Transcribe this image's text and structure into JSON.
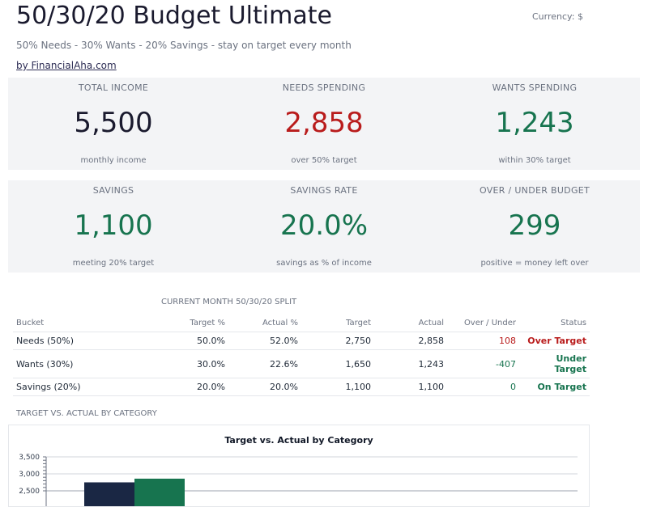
{
  "header": {
    "title": "50/30/20 Budget Ultimate",
    "currency": "Currency: $",
    "subtitle": "50% Needs - 30% Wants - 20% Savings - stay on target every month",
    "byline": "by FinancialAha.com"
  },
  "colors": {
    "dark": "#1a1a2e",
    "red": "#b91c1c",
    "green": "#17744f",
    "muted": "#6b7280",
    "card_bg": "#f3f4f6"
  },
  "kpis_row1": [
    {
      "label": "TOTAL INCOME",
      "value": "5,500",
      "note": "monthly income",
      "color": "#1a1a2e"
    },
    {
      "label": "NEEDS SPENDING",
      "value": "2,858",
      "note": "over 50% target",
      "color": "#b91c1c"
    },
    {
      "label": "WANTS SPENDING",
      "value": "1,243",
      "note": "within 30% target",
      "color": "#17744f"
    }
  ],
  "kpis_row2": [
    {
      "label": "SAVINGS",
      "value": "1,100",
      "note": "meeting 20% target",
      "color": "#17744f"
    },
    {
      "label": "SAVINGS RATE",
      "value": "20.0%",
      "note": "savings as % of income",
      "color": "#17744f"
    },
    {
      "label": "OVER / UNDER BUDGET",
      "value": "299",
      "note": "positive = money left over",
      "color": "#17744f"
    }
  ],
  "split": {
    "caption": "CURRENT MONTH 50/30/20 SPLIT",
    "headers": [
      "Bucket",
      "Target %",
      "Actual %",
      "Target",
      "Actual",
      "Over / Under",
      "Status"
    ],
    "rows": [
      {
        "bucket": "Needs (50%)",
        "target_pct": "50.0%",
        "actual_pct": "52.0%",
        "target": "2,750",
        "actual": "2,858",
        "over_under": "108",
        "status": "Over Target",
        "color": "#b91c1c"
      },
      {
        "bucket": "Wants (30%)",
        "target_pct": "30.0%",
        "actual_pct": "22.6%",
        "target": "1,650",
        "actual": "1,243",
        "over_under": "-407",
        "status": "Under Target",
        "color": "#17744f"
      },
      {
        "bucket": "Savings (20%)",
        "target_pct": "20.0%",
        "actual_pct": "20.0%",
        "target": "1,100",
        "actual": "1,100",
        "over_under": "0",
        "status": "On Target",
        "color": "#17744f"
      }
    ]
  },
  "chart_section": {
    "caption": "TARGET VS. ACTUAL BY CATEGORY"
  },
  "chart_data": {
    "type": "bar",
    "title": "Target vs. Actual by Category",
    "xlabel": "",
    "ylabel": "",
    "categories": [
      ""
    ],
    "series": [
      {
        "values": [
          2750
        ],
        "color": "#1a2744"
      },
      {
        "values": [
          2858
        ],
        "color": "#17744f"
      }
    ],
    "yticks": [
      "3,500",
      "3,000",
      "2,500"
    ],
    "ylim": [
      2500,
      3500
    ],
    "grid": true
  }
}
